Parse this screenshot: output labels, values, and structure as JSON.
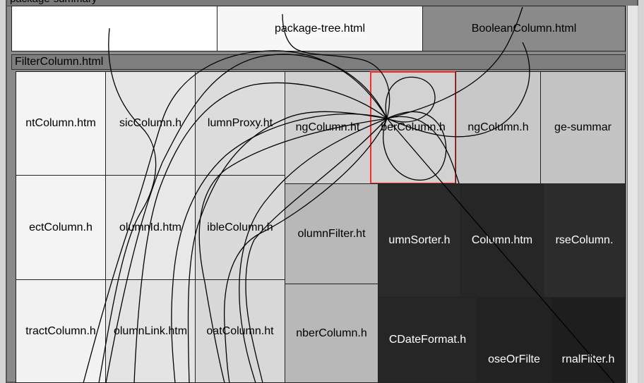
{
  "header": {
    "label": "package-summary"
  },
  "top_row": [
    {
      "label": "",
      "color": "#ffffff"
    },
    {
      "label": "package-tree.html",
      "color": "#f7f7f7"
    },
    {
      "label": "BooleanColumn.html",
      "color": "#f9f9f9"
    }
  ],
  "section": {
    "title": "FilterColumn.html"
  },
  "cells": [
    {
      "label": "AbstractColumn.html",
      "display": "ntColumn.htm",
      "color": "#f4f4f4",
      "dark": false
    },
    {
      "label": "BasicColumn.html",
      "display": "sicColumn.h",
      "color": "#e6e6e6",
      "dark": false
    },
    {
      "label": "ColumnProxy.html",
      "display": "lumnProxy.ht",
      "color": "#dcdcdc",
      "dark": false
    },
    {
      "label": "SortingColumn.html",
      "display": "ngColumn.ht",
      "color": "#d0d0d0",
      "dark": false
    },
    {
      "label": "NumberColumn.html",
      "display": "berColumn.h",
      "color": "#d2d2d2",
      "dark": false,
      "selected": true
    },
    {
      "label": "StringColumn.html",
      "display": "ngColumn.h",
      "color": "#c8c8c8",
      "dark": false
    },
    {
      "label": "package-summary.html",
      "display": "ge-summar",
      "color": "#c4c4c4",
      "dark": false
    },
    {
      "label": "SelectColumn.html",
      "display": "ectColumn.h",
      "color": "#f3f3f3",
      "dark": false
    },
    {
      "label": "ColumnId.html",
      "display": "olumnId.htm",
      "color": "#e8e8e8",
      "dark": false
    },
    {
      "label": "DoubleColumn.html",
      "display": "ibleColumn.h",
      "color": "#dadada",
      "dark": false
    },
    {
      "label": "ColumnFilter.html",
      "display": "olumnFilter.ht",
      "color": "#b8b8b8",
      "dark": false
    },
    {
      "label": "ColumnSorter.html",
      "display": "umnSorter.h",
      "color": "#2a2a2a",
      "dark": true
    },
    {
      "label": "LongColumn.html",
      "display": "Column.htm",
      "color": "#262626",
      "dark": true
    },
    {
      "label": "ReverseColumn.html",
      "display": "rseColumn.",
      "color": "#2c2c2c",
      "dark": true
    },
    {
      "label": "AbstractColumn.html",
      "display": "tractColumn.h",
      "color": "#f2f2f2",
      "dark": false
    },
    {
      "label": "ColumnLink.html",
      "display": "olumnLink.htm",
      "color": "#e4e4e4",
      "dark": false
    },
    {
      "label": "FloatColumn.html",
      "display": "oatColumn.ht",
      "color": "#d8d8d8",
      "dark": false
    },
    {
      "label": "NumberColumn.html",
      "display": "nberColumn.h",
      "color": "#b8b8b8",
      "dark": false
    },
    {
      "label": "SimpleDateFormat.html",
      "display": "CDateFormat.h",
      "color": "#262626",
      "dark": true
    },
    {
      "label": "ChooseOrFilter.html",
      "display": "oseOrFilte",
      "color": "#222222",
      "dark": true
    },
    {
      "label": "ExternalFilter.html",
      "display": "rnalFilter.h",
      "color": "#1e1e1e",
      "dark": true
    }
  ]
}
